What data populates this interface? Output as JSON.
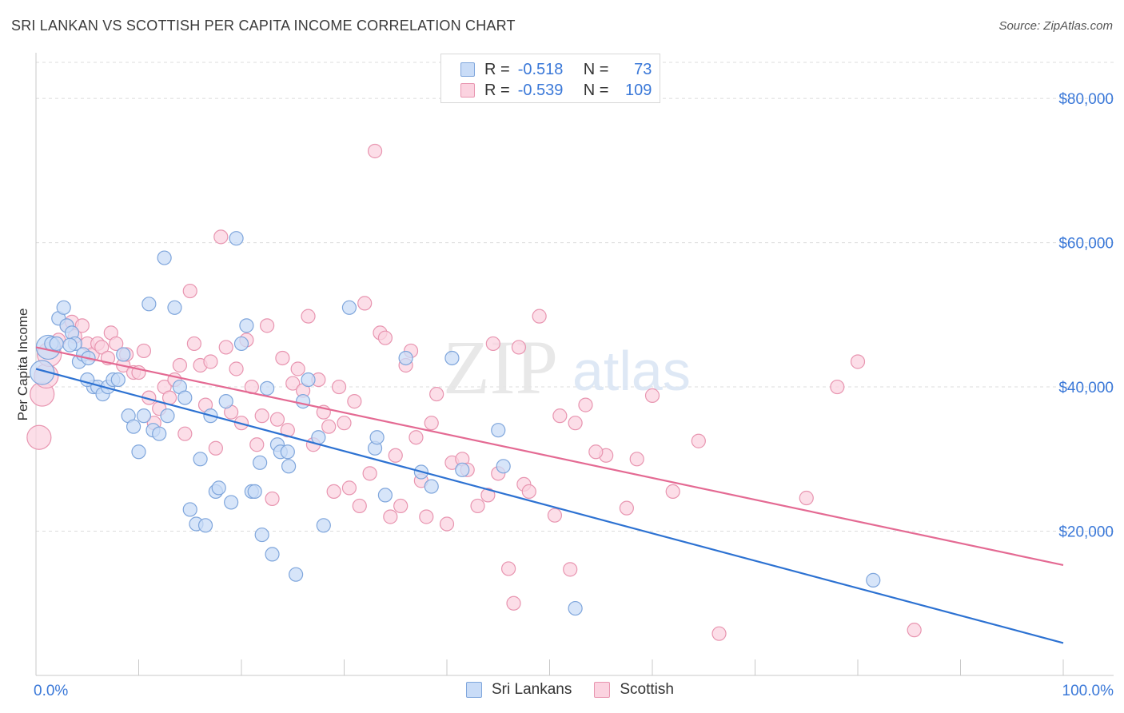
{
  "title": "SRI LANKAN VS SCOTTISH PER CAPITA INCOME CORRELATION CHART",
  "source": "Source: ZipAtlas.com",
  "watermark": {
    "part1": "ZIP",
    "part2": "atlas"
  },
  "legend_top": {
    "rows": [
      {
        "r_label": "R =",
        "r_value": "-0.518",
        "n_label": "N =",
        "n_value": "73",
        "color": "#a9c7f0",
        "border": "#6f9ad6"
      },
      {
        "r_label": "R =",
        "r_value": "-0.539",
        "n_label": "N =",
        "n_value": "109",
        "color": "#f7bfd1",
        "border": "#e58aa8"
      }
    ]
  },
  "legend_bottom": [
    {
      "label": "Sri Lankans",
      "color": "#c9dcf7",
      "border": "#7fa6dc"
    },
    {
      "label": "Scottish",
      "color": "#fbd3e0",
      "border": "#e895b0"
    }
  ],
  "chart_data": {
    "type": "scatter",
    "title": "SRI LANKAN VS SCOTTISH PER CAPITA INCOME CORRELATION CHART",
    "xlabel": "",
    "ylabel": "Per Capita Income",
    "xlim": [
      0,
      100
    ],
    "ylim": [
      0,
      85000
    ],
    "x_tick_labels": [
      "0.0%",
      "100.0%"
    ],
    "y_ticks": [
      20000,
      40000,
      60000,
      80000
    ],
    "y_tick_labels": [
      "$20,000",
      "$40,000",
      "$60,000",
      "$80,000"
    ],
    "grid": true,
    "legend_position": "top-center",
    "series": [
      {
        "name": "Sri Lankans",
        "color": "#7fa6dc",
        "fill": "#c9dcf7",
        "line_color": "#2d72d2",
        "trend": {
          "x": [
            0,
            100
          ],
          "y": [
            42500,
            4500
          ]
        },
        "points": [
          [
            1.2,
            45500
          ],
          [
            1.5,
            46000
          ],
          [
            2.0,
            46000
          ],
          [
            2.2,
            49500
          ],
          [
            2.7,
            51000
          ],
          [
            3.0,
            48500
          ],
          [
            3.5,
            47500
          ],
          [
            3.8,
            46000
          ],
          [
            4.2,
            43500
          ],
          [
            4.6,
            44500
          ],
          [
            5.1,
            44000
          ],
          [
            5.6,
            40000
          ],
          [
            6.0,
            40000
          ],
          [
            6.5,
            39000
          ],
          [
            7.0,
            40000
          ],
          [
            7.5,
            41000
          ],
          [
            8.0,
            41000
          ],
          [
            8.5,
            44500
          ],
          [
            9.0,
            36000
          ],
          [
            9.5,
            34500
          ],
          [
            10.0,
            31000
          ],
          [
            10.5,
            36000
          ],
          [
            11.0,
            51500
          ],
          [
            11.4,
            34000
          ],
          [
            12.0,
            33500
          ],
          [
            12.5,
            57900
          ],
          [
            12.8,
            36000
          ],
          [
            13.5,
            51000
          ],
          [
            14.0,
            40000
          ],
          [
            14.5,
            38500
          ],
          [
            15.0,
            23000
          ],
          [
            15.6,
            21000
          ],
          [
            16.0,
            30000
          ],
          [
            16.5,
            20800
          ],
          [
            17.0,
            36000
          ],
          [
            17.5,
            25500
          ],
          [
            17.8,
            26000
          ],
          [
            18.5,
            38000
          ],
          [
            19.0,
            24000
          ],
          [
            19.5,
            60600
          ],
          [
            20.0,
            46000
          ],
          [
            20.5,
            48500
          ],
          [
            21.0,
            25500
          ],
          [
            21.3,
            25500
          ],
          [
            21.8,
            29500
          ],
          [
            22.0,
            19500
          ],
          [
            22.5,
            39800
          ],
          [
            23.0,
            16800
          ],
          [
            23.5,
            32000
          ],
          [
            23.8,
            31000
          ],
          [
            24.5,
            31000
          ],
          [
            24.6,
            29000
          ],
          [
            25.3,
            14000
          ],
          [
            26.0,
            38000
          ],
          [
            26.5,
            41000
          ],
          [
            27.5,
            33000
          ],
          [
            28.0,
            20800
          ],
          [
            30.5,
            51000
          ],
          [
            33.0,
            31500
          ],
          [
            33.2,
            33000
          ],
          [
            34.0,
            25000
          ],
          [
            36.0,
            44000
          ],
          [
            37.5,
            28200
          ],
          [
            38.5,
            26200
          ],
          [
            40.5,
            44000
          ],
          [
            41.5,
            28500
          ],
          [
            45.0,
            34000
          ],
          [
            45.5,
            29000
          ],
          [
            52.5,
            9300
          ],
          [
            81.5,
            13200
          ],
          [
            0.6,
            42000
          ],
          [
            3.3,
            45800
          ],
          [
            5.0,
            41000
          ]
        ]
      },
      {
        "name": "Scottish",
        "color": "#e895b0",
        "fill": "#fbd3e0",
        "line_color": "#e46a93",
        "trend": {
          "x": [
            0,
            100
          ],
          "y": [
            45500,
            15300
          ]
        },
        "points": [
          [
            0.3,
            33000
          ],
          [
            0.6,
            39000
          ],
          [
            1.0,
            41500
          ],
          [
            1.3,
            44500
          ],
          [
            2.2,
            46500
          ],
          [
            3.0,
            48500
          ],
          [
            3.5,
            49000
          ],
          [
            3.8,
            47000
          ],
          [
            4.5,
            48500
          ],
          [
            5.0,
            46000
          ],
          [
            5.5,
            44500
          ],
          [
            6.0,
            46000
          ],
          [
            6.4,
            45500
          ],
          [
            7.0,
            44000
          ],
          [
            7.3,
            47500
          ],
          [
            7.8,
            46000
          ],
          [
            8.5,
            43000
          ],
          [
            8.8,
            44500
          ],
          [
            9.5,
            42000
          ],
          [
            10.0,
            42000
          ],
          [
            10.5,
            45000
          ],
          [
            11.0,
            38500
          ],
          [
            11.5,
            35000
          ],
          [
            12.0,
            37000
          ],
          [
            12.5,
            40000
          ],
          [
            13.0,
            38500
          ],
          [
            13.5,
            41000
          ],
          [
            14.0,
            43000
          ],
          [
            14.5,
            33500
          ],
          [
            15.0,
            53300
          ],
          [
            15.4,
            46000
          ],
          [
            16.0,
            43000
          ],
          [
            16.5,
            37500
          ],
          [
            17.0,
            43500
          ],
          [
            17.5,
            31500
          ],
          [
            18.0,
            60800
          ],
          [
            18.5,
            45500
          ],
          [
            19.0,
            36500
          ],
          [
            19.5,
            42500
          ],
          [
            20.0,
            35000
          ],
          [
            20.5,
            46500
          ],
          [
            21.0,
            40000
          ],
          [
            21.5,
            32000
          ],
          [
            22.0,
            36000
          ],
          [
            22.5,
            48500
          ],
          [
            23.0,
            24500
          ],
          [
            23.5,
            35500
          ],
          [
            24.0,
            44000
          ],
          [
            24.5,
            34000
          ],
          [
            25.0,
            40500
          ],
          [
            25.5,
            42500
          ],
          [
            26.0,
            39500
          ],
          [
            26.5,
            49800
          ],
          [
            27.0,
            32000
          ],
          [
            27.5,
            41000
          ],
          [
            28.0,
            36500
          ],
          [
            28.5,
            34500
          ],
          [
            29.0,
            25500
          ],
          [
            29.5,
            40000
          ],
          [
            30.0,
            35000
          ],
          [
            30.5,
            26000
          ],
          [
            31.0,
            38000
          ],
          [
            31.5,
            23500
          ],
          [
            32.0,
            51600
          ],
          [
            32.5,
            28000
          ],
          [
            33.0,
            72700
          ],
          [
            33.5,
            47500
          ],
          [
            34.0,
            46800
          ],
          [
            34.5,
            22000
          ],
          [
            35.0,
            30500
          ],
          [
            35.5,
            23500
          ],
          [
            36.0,
            43000
          ],
          [
            36.5,
            45000
          ],
          [
            37.0,
            33000
          ],
          [
            37.5,
            27000
          ],
          [
            38.0,
            22000
          ],
          [
            38.5,
            35000
          ],
          [
            39.0,
            39000
          ],
          [
            40.0,
            21000
          ],
          [
            40.5,
            29500
          ],
          [
            41.5,
            30000
          ],
          [
            42.0,
            28500
          ],
          [
            43.0,
            23500
          ],
          [
            44.0,
            25000
          ],
          [
            44.5,
            46000
          ],
          [
            45.0,
            28000
          ],
          [
            46.0,
            14800
          ],
          [
            46.5,
            10000
          ],
          [
            47.0,
            45500
          ],
          [
            47.5,
            26500
          ],
          [
            48.0,
            25500
          ],
          [
            49.0,
            49800
          ],
          [
            50.5,
            22200
          ],
          [
            51.0,
            36000
          ],
          [
            52.0,
            14700
          ],
          [
            52.5,
            35000
          ],
          [
            53.5,
            37500
          ],
          [
            55.5,
            30500
          ],
          [
            57.5,
            23200
          ],
          [
            60.0,
            38800
          ],
          [
            62.0,
            25500
          ],
          [
            64.5,
            32500
          ],
          [
            66.5,
            5800
          ],
          [
            75.0,
            24600
          ],
          [
            78.0,
            40000
          ],
          [
            80.0,
            43500
          ],
          [
            85.5,
            6300
          ],
          [
            54.5,
            31000
          ],
          [
            58.5,
            30000
          ]
        ]
      }
    ]
  }
}
